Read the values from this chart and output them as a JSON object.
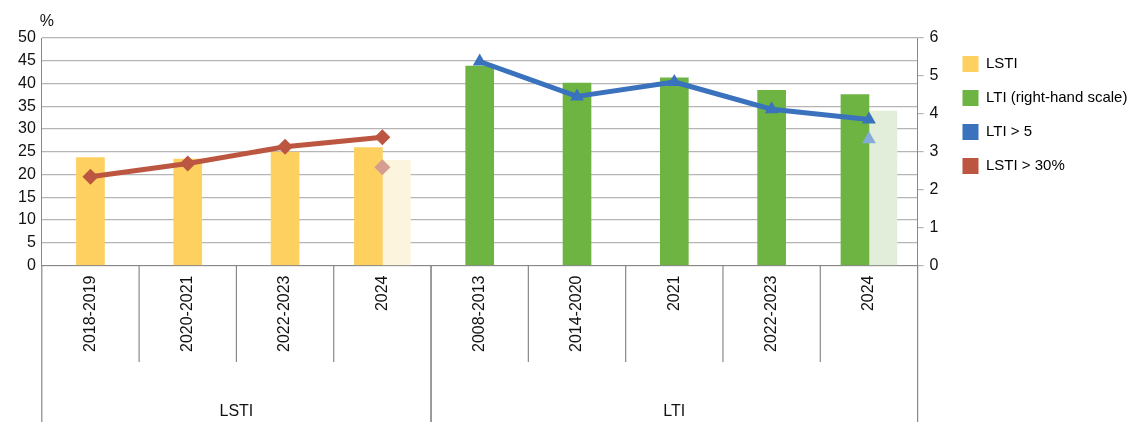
{
  "chart_data": {
    "type": "bar",
    "ylabel": "%",
    "categories": [
      "2018-2019",
      "2020-2021",
      "2022-2023",
      "2024",
      "2008-2013",
      "2014-2020",
      "2021",
      "2022-2023",
      "2024"
    ],
    "series": [
      {
        "name": "LSTI",
        "color": "#fdd05f",
        "values": [
          23.7,
          23.4,
          24.9,
          25.9,
          null,
          null,
          null,
          null,
          null
        ]
      },
      {
        "color": "#fdf4dd",
        "values": [
          null,
          null,
          null,
          23.1,
          null,
          null,
          null,
          null,
          null
        ]
      },
      {
        "name": "LTI (right-hand scale)",
        "axis": "y2",
        "color": "#6db443",
        "values": [
          null,
          null,
          null,
          null,
          5.26,
          4.81,
          4.95,
          4.62,
          4.51
        ]
      },
      {
        "axis": "y2",
        "color": "#e2eed9",
        "values": [
          null,
          null,
          null,
          null,
          null,
          null,
          null,
          null,
          4.07
        ]
      },
      {
        "name": "LTI > 5",
        "type": "line",
        "axis": "y2",
        "marker": "triangle",
        "color": "#3a72bd",
        "values": [
          null,
          null,
          null,
          null,
          5.38,
          4.46,
          4.84,
          4.12,
          3.85
        ]
      },
      {
        "type": "scatter",
        "axis": "y2",
        "marker": "triangle",
        "color": "#86abdb",
        "values": [
          null,
          null,
          null,
          null,
          null,
          null,
          null,
          null,
          3.33
        ]
      },
      {
        "name": "LSTI > 30%",
        "type": "line",
        "marker": "diamond",
        "color": "#bc5640",
        "values": [
          19.5,
          22.4,
          26.1,
          28.2,
          null,
          null,
          null,
          null,
          null
        ]
      },
      {
        "type": "scatter",
        "marker": "diamond",
        "color": "#d59c90",
        "values": [
          null,
          null,
          null,
          21.6,
          null,
          null,
          null,
          null,
          null
        ]
      }
    ],
    "ylim": [
      0,
      50
    ],
    "yticks": [
      0,
      5,
      10,
      15,
      20,
      25,
      30,
      35,
      40,
      45,
      50
    ],
    "y2lim": [
      0,
      6
    ],
    "y2ticks": [
      0,
      1,
      2,
      3,
      4,
      5,
      6
    ],
    "grid": "y",
    "legend": "right",
    "annotations": [
      "LSTI",
      "LTI"
    ]
  }
}
